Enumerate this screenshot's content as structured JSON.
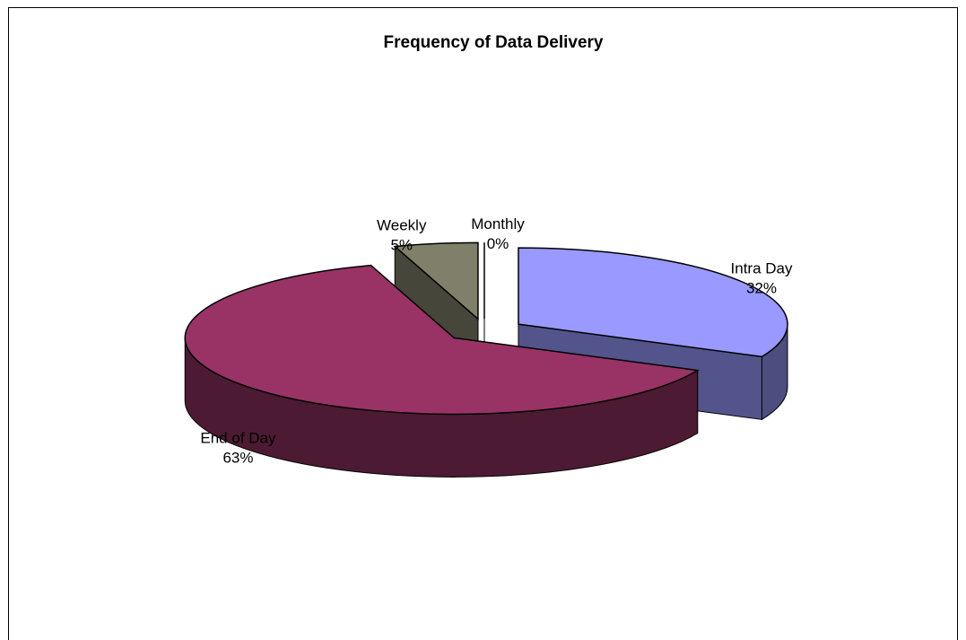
{
  "chart_data": {
    "type": "pie",
    "title": "Frequency of Data Delivery",
    "categories": [
      "Intra Day",
      "End of Day",
      "Weekly",
      "Monthly"
    ],
    "values": [
      32,
      63,
      5,
      0
    ],
    "value_labels": [
      "32%",
      "63%",
      "5%",
      "0%"
    ],
    "colors": [
      "#9999ff",
      "#993366",
      "#80806a",
      "#ffffcc"
    ],
    "three_d": true,
    "exploded": true
  }
}
